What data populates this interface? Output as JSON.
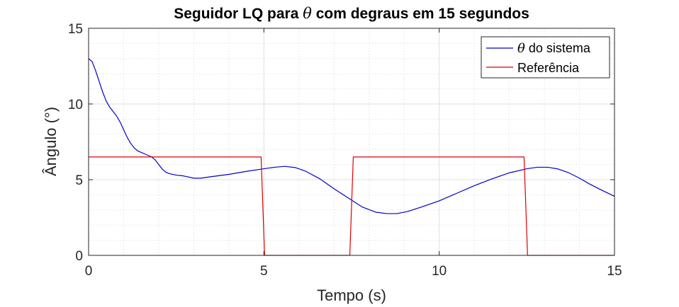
{
  "chart_data": {
    "type": "line",
    "title_prefix": "Seguidor LQ para ",
    "title_symbol": "θ",
    "title_suffix": " com degraus em 15 segundos",
    "xlabel": "Tempo (s)",
    "ylabel": "Ângulo (°)",
    "xlim": [
      0,
      15
    ],
    "ylim": [
      0,
      15
    ],
    "xticks": [
      0,
      5,
      10,
      15
    ],
    "yticks": [
      0,
      5,
      10,
      15
    ],
    "grid": true,
    "minor_grid": true,
    "legend_position": "top-right",
    "series": [
      {
        "name": "θ do sistema",
        "legend_symbol": "θ",
        "legend_text": " do sistema",
        "color": "#0000cc",
        "x": [
          0,
          0.1,
          0.2,
          0.3,
          0.4,
          0.5,
          0.6,
          0.7,
          0.8,
          0.9,
          1.0,
          1.1,
          1.2,
          1.3,
          1.4,
          1.5,
          1.6,
          1.7,
          1.8,
          1.9,
          2.0,
          2.1,
          2.2,
          2.3,
          2.5,
          2.7,
          3.0,
          3.2,
          3.5,
          4.0,
          4.5,
          5.0,
          5.3,
          5.6,
          5.9,
          6.2,
          6.6,
          7.0,
          7.4,
          7.8,
          8.2,
          8.5,
          8.8,
          9.1,
          9.5,
          10.0,
          10.5,
          11.0,
          11.5,
          12.0,
          12.5,
          12.8,
          13.1,
          13.4,
          13.7,
          14.0,
          14.3,
          14.6,
          15.0
        ],
        "y": [
          13.0,
          12.8,
          12.2,
          11.5,
          10.8,
          10.2,
          9.8,
          9.5,
          9.2,
          8.8,
          8.3,
          7.8,
          7.4,
          7.1,
          6.9,
          6.8,
          6.7,
          6.6,
          6.5,
          6.3,
          6.0,
          5.7,
          5.5,
          5.4,
          5.3,
          5.25,
          5.1,
          5.1,
          5.2,
          5.35,
          5.55,
          5.72,
          5.82,
          5.88,
          5.8,
          5.55,
          5.05,
          4.4,
          3.8,
          3.2,
          2.85,
          2.76,
          2.76,
          2.9,
          3.2,
          3.6,
          4.1,
          4.6,
          5.05,
          5.45,
          5.72,
          5.82,
          5.82,
          5.7,
          5.45,
          5.1,
          4.7,
          4.35,
          3.9
        ]
      },
      {
        "name": "Referência",
        "legend_symbol": "",
        "legend_text": "Referência",
        "color": "#dd0000",
        "x": [
          0,
          4.92,
          5.02,
          7.45,
          7.55,
          12.42,
          12.52,
          15.0
        ],
        "y": [
          6.5,
          6.5,
          0,
          0,
          6.5,
          6.5,
          0,
          0
        ]
      }
    ]
  }
}
